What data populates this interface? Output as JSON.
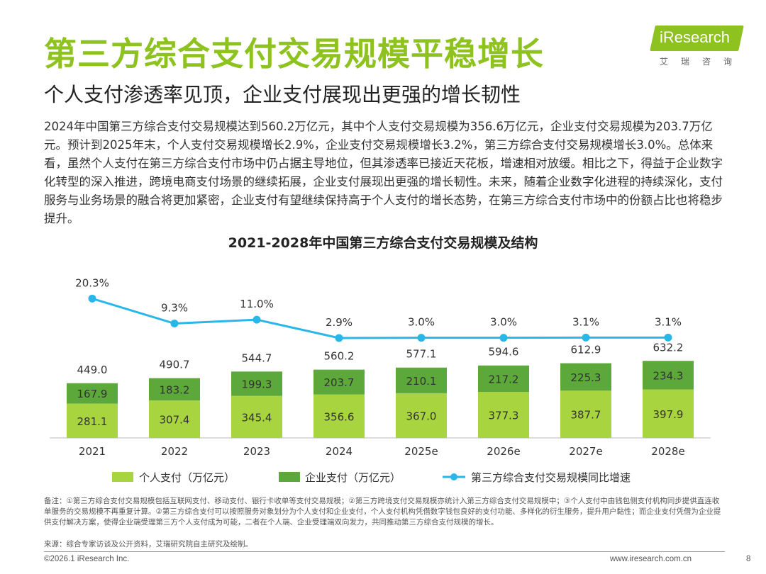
{
  "header": {
    "title": "第三方综合支付交易规模平稳增长",
    "subtitle": "个人支付渗透率见顶，企业支付展现出更强的增长韧性"
  },
  "logo": {
    "text": "iResearch",
    "cn": "艾瑞咨询"
  },
  "body_text": "2024年中国第三方综合支付交易规模达到560.2万亿元，其中个人支付交易规模为356.6万亿元，企业支付交易规模为203.7万亿元。预计到2025年末，个人支付交易规模增长2.9%，企业支付交易规模增长3.2%，第三方综合支付交易规模增长3.0%。总体来看，虽然个人支付在第三方综合支付市场中仍占据主导地位，但其渗透率已接近天花板，增速相对放缓。相比之下，得益于企业数字化转型的深入推进，跨境电商支付场景的继续拓展，企业支付展现出更强的增长韧性。未来，随着企业数字化进程的持续深化，支付服务与业务场景的融合将更加紧密，企业支付有望继续保持高于个人支付的增长态势，在第三方综合支付市场中的份额占比也将稳步提升。",
  "chart_data": {
    "type": "bar",
    "title": "2021-2028年中国第三方综合支付交易规模及结构",
    "categories": [
      "2021",
      "2022",
      "2023",
      "2024",
      "2025e",
      "2026e",
      "2027e",
      "2028e"
    ],
    "series": [
      {
        "name": "个人支付（万亿元）",
        "kind": "stacked-bar",
        "color": "#a8d43f",
        "values": [
          281.1,
          307.4,
          345.4,
          356.6,
          367.0,
          377.3,
          387.7,
          397.9
        ],
        "labels": [
          "281.1",
          "307.4",
          "345.4",
          "356.6",
          "367.0",
          "377.3",
          "387.7",
          "397.9"
        ]
      },
      {
        "name": "企业支付（万亿元）",
        "kind": "stacked-bar",
        "color": "#5ca83a",
        "values": [
          167.9,
          183.2,
          199.3,
          203.7,
          210.1,
          217.2,
          225.3,
          234.3
        ],
        "labels": [
          "167.9",
          "183.2",
          "199.3",
          "203.7",
          "210.1",
          "217.2",
          "225.3",
          "234.3"
        ]
      },
      {
        "name": "第三方综合支付交易规模同比增速",
        "kind": "line",
        "color": "#29b6e8",
        "values": [
          20.3,
          9.3,
          11.0,
          2.9,
          3.0,
          3.0,
          3.1,
          3.1
        ],
        "labels": [
          "20.3%",
          "9.3%",
          "11.0%",
          "2.9%",
          "3.0%",
          "3.0%",
          "3.1%",
          "3.1%"
        ]
      }
    ],
    "totals": [
      449.0,
      490.7,
      544.7,
      560.2,
      577.1,
      594.6,
      612.9,
      632.2
    ],
    "total_labels": [
      "449.0",
      "490.7",
      "544.7",
      "560.2",
      "577.1",
      "594.6",
      "612.9",
      "632.2"
    ],
    "legend_position": "bottom"
  },
  "notes": {
    "note": "备注：①第三方综合支付交易规模包括互联网支付、移动支付、银行卡收单等支付交易规模；②第三方跨境支付交易规模亦统计入第三方综合支付交易规模中；③个人支付中由钱包侧支付机构同步提供直连收单服务的交易规模不再重复计算。②第三方综合支付可以按照服务对象划分为个人支付和企业支付，个人支付机构凭借数字钱包良好的支付功能、多样化的衍生服务，提升用户黏性；而企业支付凭借为企业提供支付解决方案，使得企业端受理第三方个人支付成为可能，二者在个人端、企业受理端双向发力，共同推动第三方综合支付规模的增长。",
    "source": "来源：综合专家访谈及公开资料，艾瑞研究院自主研究及绘制。"
  },
  "footer": {
    "copyright": "©2026.1 iResearch Inc.",
    "url": "www.iresearch.com.cn",
    "page": "8"
  }
}
